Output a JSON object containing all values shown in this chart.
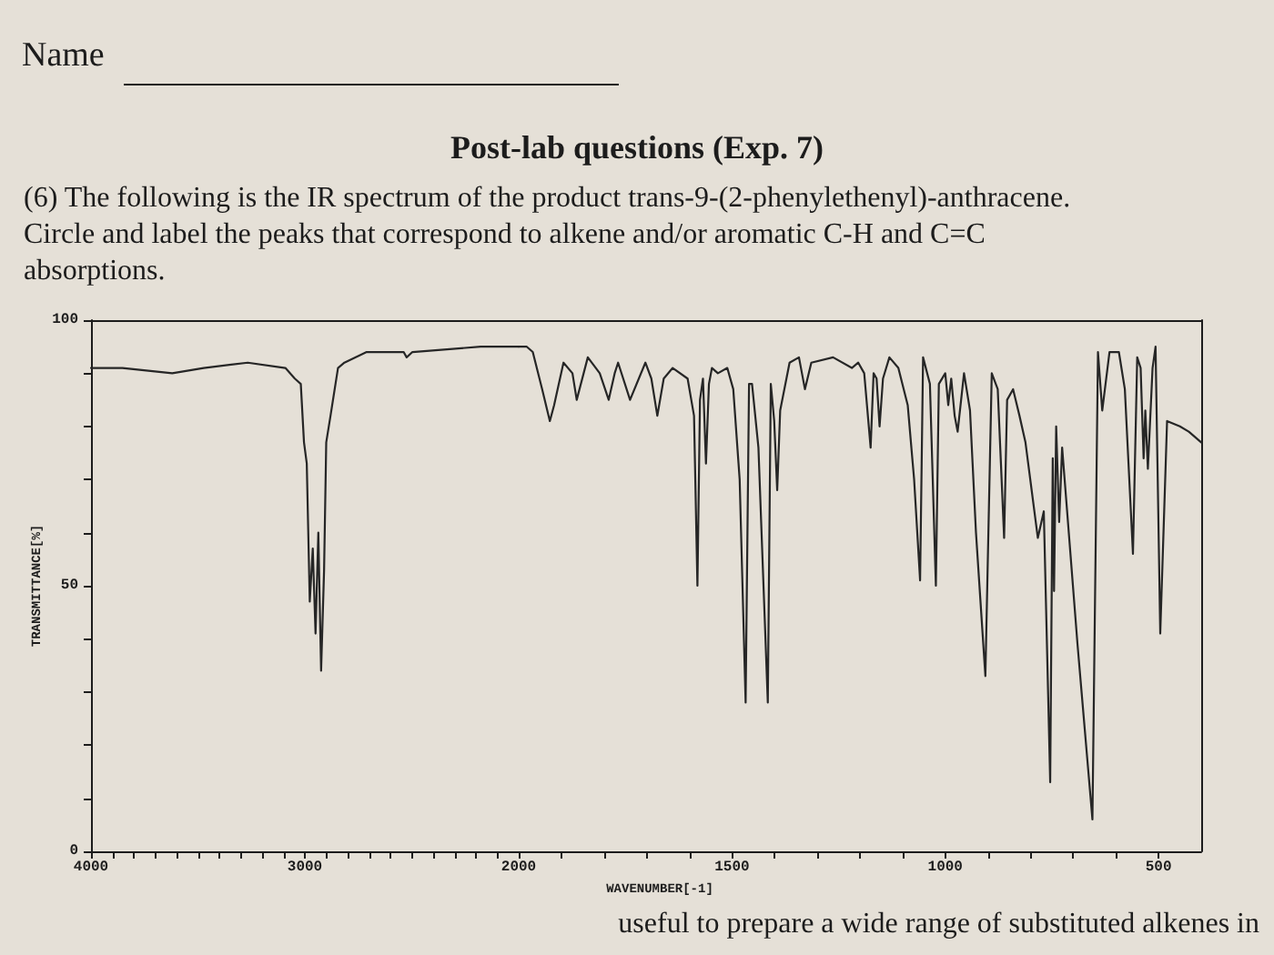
{
  "chart_data": [
    {
      "type": "line",
      "subtitle": "(6) The following is the IR spectrum of the product trans-9-(2-phenylethenyl)-anthracene. Circle and label the peaks that correspond to alkene and/or aromatic C-H and C=C absorptions.",
      "annotations": [
        "Name",
        "useful to prepare a wide range of substituted alkenes in"
      ],
      "ylabel": "TRANSMITTANCE[%]",
      "color": "#262626",
      "xlim": [
        4000,
        2000
      ],
      "xticks": [
        4000,
        {
          "value": 3900,
          "label": null
        },
        {
          "value": 3800,
          "label": null
        },
        {
          "value": 3700,
          "label": null
        },
        {
          "value": 3600,
          "label": null
        },
        {
          "value": 3500,
          "label": null
        },
        {
          "value": 3400,
          "label": null
        },
        {
          "value": 3300,
          "label": null
        },
        {
          "value": 3200,
          "label": null
        },
        {
          "value": 3100,
          "label": null
        },
        3000,
        {
          "value": 2900,
          "label": null
        },
        {
          "value": 2800,
          "label": null
        },
        {
          "value": 2700,
          "label": null
        },
        {
          "value": 2600,
          "label": null
        },
        {
          "value": 2500,
          "label": null
        },
        {
          "value": 2400,
          "label": null
        },
        {
          "value": 2300,
          "label": null
        },
        {
          "value": 2200,
          "label": null
        },
        {
          "value": 2100,
          "label": null
        }
      ],
      "ylim": [
        0,
        100
      ],
      "yticks": [
        0,
        {
          "value": 10,
          "label": null
        },
        {
          "value": 20,
          "label": null
        },
        {
          "value": 30,
          "label": null
        },
        {
          "value": 40,
          "label": null
        },
        50,
        {
          "value": 60,
          "label": null
        },
        {
          "value": 70,
          "label": null
        },
        {
          "value": 80,
          "label": null
        },
        {
          "value": 90,
          "label": null
        },
        100
      ],
      "x": [
        4000,
        3853,
        3620,
        3473,
        3267,
        3091,
        3047,
        3019,
        3004,
        2991,
        2977,
        2963,
        2950,
        2937,
        2924,
        2910,
        2900,
        2880,
        2845,
        2815,
        2711,
        2538,
        2524,
        2497,
        2178,
        2000
      ],
      "values": [
        91,
        91,
        90,
        91,
        92,
        91,
        89,
        88,
        77,
        73,
        47,
        57,
        41,
        60,
        34,
        53,
        77,
        82,
        91,
        92,
        94,
        94,
        93,
        94,
        95,
        95
      ]
    },
    {
      "type": "line",
      "title": "Post-lab questions (Exp. 7)",
      "xlabel": "WAVENUMBER[-1]",
      "color": "#262626",
      "tick_labels": "x",
      "xlim": [
        2000,
        400
      ],
      "xticks": [
        2000,
        {
          "value": 1900,
          "label": null
        },
        {
          "value": 1800,
          "label": null
        },
        {
          "value": 1700,
          "label": null
        },
        {
          "value": 1600,
          "label": null
        },
        1500,
        {
          "value": 1400,
          "label": null
        },
        {
          "value": 1300,
          "label": null
        },
        {
          "value": 1200,
          "label": null
        },
        {
          "value": 1100,
          "label": null
        },
        1000,
        {
          "value": 900,
          "label": null
        },
        {
          "value": 800,
          "label": null
        },
        {
          "value": 700,
          "label": null
        },
        {
          "value": 600,
          "label": null
        },
        500
      ],
      "ylim": [
        0,
        100
      ],
      "x": [
        2000,
        1981,
        1967,
        1945,
        1927,
        1917,
        1895,
        1874,
        1864,
        1838,
        1810,
        1789,
        1775,
        1767,
        1739,
        1703,
        1689,
        1675,
        1660,
        1639,
        1604,
        1589,
        1581,
        1575,
        1568,
        1561,
        1554,
        1547,
        1533,
        1511,
        1497,
        1482,
        1468,
        1460,
        1453,
        1438,
        1416,
        1409,
        1401,
        1394,
        1387,
        1365,
        1343,
        1329,
        1314,
        1263,
        1219,
        1204,
        1190,
        1175,
        1168,
        1161,
        1154,
        1146,
        1131,
        1110,
        1088,
        1073,
        1059,
        1052,
        1036,
        1022,
        1015,
        1000,
        993,
        986,
        978,
        971,
        956,
        942,
        928,
        906,
        891,
        877,
        862,
        855,
        841,
        826,
        812,
        783,
        769,
        754,
        748,
        745,
        740,
        733,
        726,
        690,
        655,
        642,
        632,
        615,
        593,
        579,
        560,
        550,
        542,
        535,
        531,
        525,
        514,
        507,
        496,
        480,
        450,
        429,
        400
      ],
      "values": [
        95,
        95,
        94,
        87,
        81,
        84,
        92,
        90,
        85,
        93,
        90,
        85,
        90,
        92,
        85,
        92,
        89,
        82,
        89,
        91,
        89,
        82,
        50,
        85,
        89,
        73,
        88,
        91,
        90,
        91,
        87,
        70,
        28,
        88,
        88,
        76,
        28,
        88,
        81,
        68,
        83,
        92,
        93,
        87,
        92,
        93,
        91,
        92,
        90,
        76,
        90,
        89,
        80,
        89,
        93,
        91,
        84,
        70,
        51,
        93,
        88,
        50,
        88,
        90,
        84,
        89,
        82,
        79,
        90,
        83,
        60,
        33,
        90,
        87,
        59,
        85,
        87,
        82,
        77,
        59,
        64,
        13,
        74,
        49,
        80,
        62,
        76,
        39,
        6,
        94,
        83,
        94,
        94,
        87,
        56,
        93,
        91,
        74,
        83,
        72,
        91,
        95,
        41,
        81,
        80,
        79,
        77
      ]
    }
  ]
}
